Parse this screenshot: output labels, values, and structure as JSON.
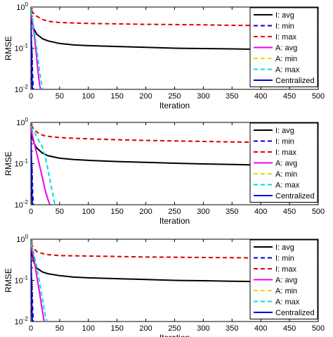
{
  "chart_data": [
    {
      "type": "line",
      "title": "",
      "xlabel": "Iteration",
      "ylabel": "RMSE",
      "yscale": "log",
      "xlim": [
        0,
        500
      ],
      "ylim": [
        0.01,
        1
      ],
      "xticks": [
        "0",
        "50",
        "100",
        "150",
        "200",
        "250",
        "300",
        "350",
        "400",
        "450",
        "500"
      ],
      "yticks": [
        {
          "base": "10",
          "exp": "-2"
        },
        {
          "base": "10",
          "exp": "-1"
        },
        {
          "base": "10",
          "exp": "0"
        }
      ],
      "legend_position": "top-right",
      "series": [
        {
          "name": "I: avg",
          "color": "#000000",
          "dash": "solid",
          "x": [
            0,
            2,
            5,
            10,
            20,
            30,
            50,
            75,
            100,
            150,
            200,
            250,
            300,
            350,
            400,
            450,
            500
          ],
          "y": [
            0.7,
            0.45,
            0.3,
            0.22,
            0.17,
            0.15,
            0.13,
            0.12,
            0.115,
            0.11,
            0.105,
            0.1,
            0.098,
            0.096,
            0.094,
            0.093,
            0.092
          ]
        },
        {
          "name": "I: min",
          "color": "#0000cc",
          "dash": "dash",
          "x": [
            0,
            2,
            3,
            4
          ],
          "y": [
            0.25,
            0.06,
            0.02,
            0.01
          ]
        },
        {
          "name": "I: max",
          "color": "#dd0000",
          "dash": "dash",
          "x": [
            0,
            5,
            10,
            20,
            30,
            50,
            100,
            150,
            200,
            250,
            300,
            350,
            400,
            450,
            500
          ],
          "y": [
            0.8,
            0.7,
            0.6,
            0.5,
            0.45,
            0.42,
            0.4,
            0.39,
            0.38,
            0.375,
            0.37,
            0.36,
            0.355,
            0.35,
            0.35
          ]
        },
        {
          "name": "A: avg",
          "color": "#ee00ee",
          "dash": "solid",
          "x": [
            0,
            3,
            6,
            9,
            12,
            15,
            17
          ],
          "y": [
            0.7,
            0.4,
            0.2,
            0.08,
            0.03,
            0.013,
            0.01
          ]
        },
        {
          "name": "A: min",
          "color": "#dddd00",
          "dash": "dash",
          "x": [
            0,
            1,
            2
          ],
          "y": [
            0.4,
            0.05,
            0.01
          ]
        },
        {
          "name": "A: max",
          "color": "#00dddd",
          "dash": "dash",
          "x": [
            0,
            3,
            6,
            10,
            14,
            18,
            21
          ],
          "y": [
            0.8,
            0.5,
            0.25,
            0.1,
            0.035,
            0.015,
            0.01
          ]
        },
        {
          "name": "Centralized",
          "color": "#0000cc",
          "dash": "solid",
          "x": [
            0,
            1,
            1.5,
            2,
            2.5
          ],
          "y": [
            0.5,
            0.1,
            0.03,
            0.015,
            0.01
          ]
        }
      ]
    },
    {
      "type": "line",
      "title": "",
      "xlabel": "Iteration",
      "ylabel": "RMSE",
      "yscale": "log",
      "xlim": [
        0,
        500
      ],
      "ylim": [
        0.01,
        1
      ],
      "xticks": [
        "0",
        "50",
        "100",
        "150",
        "200",
        "250",
        "300",
        "350",
        "400",
        "450",
        "500"
      ],
      "yticks": [
        {
          "base": "10",
          "exp": "-2"
        },
        {
          "base": "10",
          "exp": "-1"
        },
        {
          "base": "10",
          "exp": "0"
        }
      ],
      "legend_position": "top-right",
      "series": [
        {
          "name": "I: avg",
          "color": "#000000",
          "dash": "solid",
          "x": [
            0,
            3,
            6,
            10,
            20,
            30,
            50,
            75,
            100,
            150,
            200,
            250,
            300,
            350,
            400,
            450,
            500
          ],
          "y": [
            0.7,
            0.4,
            0.3,
            0.24,
            0.18,
            0.155,
            0.135,
            0.125,
            0.12,
            0.112,
            0.107,
            0.102,
            0.098,
            0.095,
            0.092,
            0.09,
            0.088
          ]
        },
        {
          "name": "I: min",
          "color": "#0000cc",
          "dash": "dash",
          "x": [
            0,
            2,
            3,
            4
          ],
          "y": [
            0.25,
            0.06,
            0.02,
            0.01
          ]
        },
        {
          "name": "I: max",
          "color": "#dd0000",
          "dash": "dash",
          "x": [
            0,
            3,
            8,
            15,
            25,
            40,
            60,
            100,
            150,
            200,
            250,
            300,
            350,
            400,
            450,
            500
          ],
          "y": [
            0.85,
            0.75,
            0.62,
            0.52,
            0.47,
            0.44,
            0.42,
            0.4,
            0.38,
            0.365,
            0.355,
            0.345,
            0.335,
            0.33,
            0.32,
            0.315
          ]
        },
        {
          "name": "A: avg",
          "color": "#ee00ee",
          "dash": "solid",
          "x": [
            0,
            5,
            10,
            15,
            20,
            25,
            30,
            33
          ],
          "y": [
            0.7,
            0.35,
            0.18,
            0.09,
            0.045,
            0.022,
            0.013,
            0.01
          ]
        },
        {
          "name": "A: min",
          "color": "#dddd00",
          "dash": "dash",
          "x": [
            0,
            1,
            2
          ],
          "y": [
            0.4,
            0.05,
            0.01
          ]
        },
        {
          "name": "A: max",
          "color": "#00dddd",
          "dash": "dash",
          "x": [
            0,
            5,
            10,
            20,
            25,
            30,
            35,
            40,
            42
          ],
          "y": [
            0.8,
            0.6,
            0.45,
            0.25,
            0.14,
            0.07,
            0.03,
            0.013,
            0.01
          ]
        },
        {
          "name": "Centralized",
          "color": "#0000cc",
          "dash": "solid",
          "x": [
            0,
            1,
            1.5,
            2,
            2.5
          ],
          "y": [
            0.5,
            0.1,
            0.03,
            0.015,
            0.01
          ]
        }
      ]
    },
    {
      "type": "line",
      "title": "",
      "xlabel": "Iteration",
      "ylabel": "RMSE",
      "yscale": "log",
      "xlim": [
        0,
        500
      ],
      "ylim": [
        0.01,
        1
      ],
      "xticks": [
        "0",
        "50",
        "100",
        "150",
        "200",
        "250",
        "300",
        "350",
        "400",
        "450",
        "500"
      ],
      "yticks": [
        {
          "base": "10",
          "exp": "-2"
        },
        {
          "base": "10",
          "exp": "-1"
        },
        {
          "base": "10",
          "exp": "0"
        }
      ],
      "legend_position": "top-right",
      "series": [
        {
          "name": "I: avg",
          "color": "#000000",
          "dash": "solid",
          "x": [
            0,
            2,
            5,
            10,
            20,
            30,
            50,
            75,
            100,
            150,
            200,
            250,
            300,
            350,
            400,
            450,
            500
          ],
          "y": [
            0.7,
            0.45,
            0.28,
            0.2,
            0.16,
            0.145,
            0.13,
            0.12,
            0.115,
            0.11,
            0.105,
            0.1,
            0.098,
            0.095,
            0.093,
            0.092,
            0.09
          ]
        },
        {
          "name": "I: min",
          "color": "#0000cc",
          "dash": "dash",
          "x": [
            0,
            2,
            3,
            4
          ],
          "y": [
            0.25,
            0.06,
            0.02,
            0.01
          ]
        },
        {
          "name": "I: max",
          "color": "#dd0000",
          "dash": "dash",
          "x": [
            0,
            5,
            10,
            20,
            30,
            50,
            100,
            150,
            200,
            250,
            300,
            350,
            400,
            450,
            500
          ],
          "y": [
            0.8,
            0.6,
            0.5,
            0.45,
            0.42,
            0.4,
            0.39,
            0.38,
            0.37,
            0.365,
            0.36,
            0.355,
            0.35,
            0.345,
            0.34
          ]
        },
        {
          "name": "A: avg",
          "color": "#ee00ee",
          "dash": "solid",
          "x": [
            0,
            5,
            10,
            15,
            20,
            23
          ],
          "y": [
            0.7,
            0.35,
            0.13,
            0.05,
            0.018,
            0.01
          ]
        },
        {
          "name": "A: min",
          "color": "#dddd00",
          "dash": "dash",
          "x": [
            0,
            1,
            2
          ],
          "y": [
            0.4,
            0.05,
            0.01
          ]
        },
        {
          "name": "A: max",
          "color": "#00dddd",
          "dash": "dash",
          "x": [
            0,
            5,
            10,
            15,
            20,
            25,
            28
          ],
          "y": [
            0.8,
            0.45,
            0.22,
            0.09,
            0.035,
            0.014,
            0.01
          ]
        },
        {
          "name": "Centralized",
          "color": "#0000cc",
          "dash": "solid",
          "x": [
            0,
            1,
            1.5,
            2,
            2.5
          ],
          "y": [
            0.5,
            0.1,
            0.03,
            0.015,
            0.01
          ]
        }
      ]
    }
  ]
}
